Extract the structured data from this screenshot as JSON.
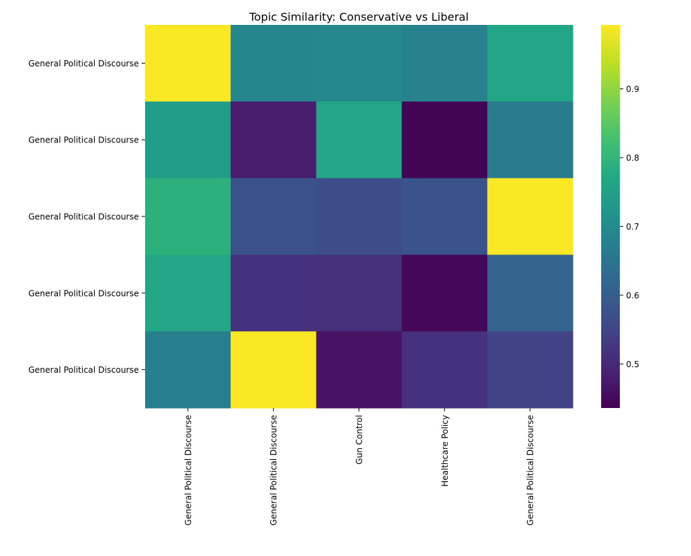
{
  "chart_data": {
    "type": "heatmap",
    "title": "Topic Similarity: Conservative vs Liberal",
    "row_labels": [
      "General Political Discourse",
      "General Political Discourse",
      "General Political Discourse",
      "General Political Discourse",
      "General Political Discourse"
    ],
    "col_labels": [
      "General Political Discourse",
      "General Political Discourse",
      "Gun Control",
      "Healthcare Policy",
      "General Political Discourse"
    ],
    "values": [
      [
        0.99,
        0.69,
        0.695,
        0.68,
        0.765
      ],
      [
        0.74,
        0.48,
        0.765,
        0.44,
        0.665
      ],
      [
        0.79,
        0.575,
        0.565,
        0.58,
        0.99
      ],
      [
        0.765,
        0.515,
        0.51,
        0.445,
        0.615
      ],
      [
        0.675,
        0.99,
        0.465,
        0.515,
        0.545
      ]
    ],
    "colorbar": {
      "vmin": 0.436,
      "vmax": 0.993,
      "ticks": [
        0.5,
        0.6,
        0.7,
        0.8,
        0.9
      ],
      "colormap": "viridis"
    }
  }
}
